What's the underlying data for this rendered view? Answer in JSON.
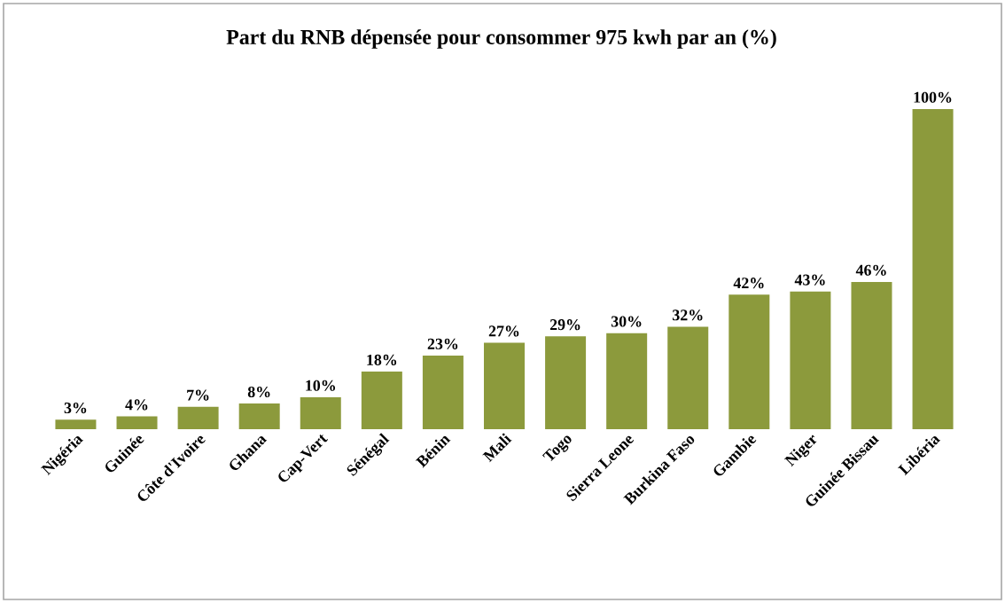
{
  "chart_data": {
    "type": "bar",
    "title": "Part du RNB dépensée pour consommer 975 kwh par an (%)",
    "categories": [
      "Nigéria",
      "Guinée",
      "Côte d'Ivoire",
      "Ghana",
      "Cap-Vert",
      "Sénégal",
      "Bénin",
      "Mali",
      "Togo",
      "Sierra Leone",
      "Burkina Faso",
      "Gambie",
      "Niger",
      "Guinée Bissau",
      "Libéria"
    ],
    "values": [
      3,
      4,
      7,
      8,
      10,
      18,
      23,
      27,
      29,
      30,
      32,
      42,
      43,
      46,
      100
    ],
    "value_labels": [
      "3%",
      "4%",
      "7%",
      "8%",
      "10%",
      "18%",
      "23%",
      "27%",
      "29%",
      "30%",
      "32%",
      "42%",
      "43%",
      "46%",
      "100%"
    ],
    "color": "#8c9a3c"
  }
}
